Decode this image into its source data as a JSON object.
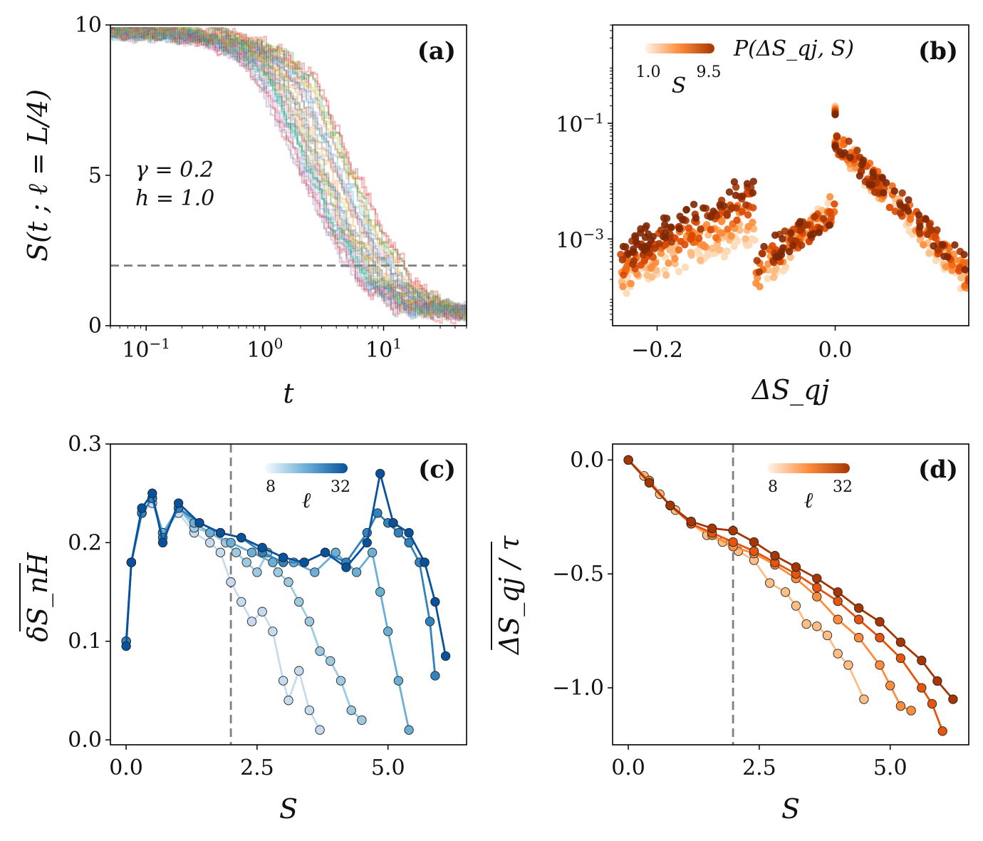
{
  "chart_data": [
    {
      "id": "a",
      "type": "line",
      "panel_label": "(a)",
      "xlabel": "t",
      "ylabel": "S(t ; ℓ = L/4)",
      "xscale": "log",
      "xlim": [
        0.05,
        50
      ],
      "ylim": [
        0,
        10
      ],
      "xticks": [
        {
          "value": 0.1,
          "base": "10",
          "exp": "−1"
        },
        {
          "value": 1,
          "base": "10",
          "exp": "0"
        },
        {
          "value": 10,
          "base": "10",
          "exp": "1"
        }
      ],
      "yticks": [
        {
          "value": 0,
          "label": "0"
        },
        {
          "value": 5,
          "label": "5"
        },
        {
          "value": 10,
          "label": "10"
        }
      ],
      "annotations": [
        "γ = 0.2",
        "h = 1.0"
      ],
      "hline": 2.0,
      "n_trajectories": 30,
      "typical_curve": {
        "x": [
          0.05,
          0.1,
          0.3,
          0.5,
          1,
          1.5,
          2,
          3,
          5,
          7,
          10,
          20,
          50
        ],
        "y": [
          9.8,
          9.75,
          9.6,
          9.4,
          8.8,
          8.0,
          6.9,
          5.3,
          3.3,
          2.4,
          1.4,
          0.6,
          0.4
        ]
      },
      "series_colors": [
        "#1f77b4",
        "#ff7f0e",
        "#2ca02c",
        "#d62728",
        "#9467bd",
        "#8c564b",
        "#e377c2",
        "#7f7f7f",
        "#bcbd22",
        "#17becf"
      ]
    },
    {
      "id": "b",
      "type": "scatter",
      "panel_label": "(b)",
      "xlabel": "ΔS_qj",
      "ylabel": "",
      "ylegend": "P(ΔS_qj, S)",
      "yscale": "log",
      "xlim": [
        -0.25,
        0.15
      ],
      "ylim_log10": [
        -4.5,
        0.7
      ],
      "xticks": [
        {
          "value": -0.2,
          "label": "−0.2"
        },
        {
          "value": 0.0,
          "label": "0.0"
        }
      ],
      "yticks": [
        {
          "value": -1,
          "base": "10",
          "exp": "−1"
        },
        {
          "value": -3,
          "base": "10",
          "exp": "−3"
        }
      ],
      "colorbar": {
        "label": "S",
        "min_label": "1.0",
        "max_label": "9.5",
        "min": 1.0,
        "max": 9.5
      },
      "peak": {
        "x": 0.0,
        "log10_y": -1.3,
        "spike_log10_y": -0.7
      },
      "series": [
        {
          "S": 1.0,
          "color": "#fdd9b5"
        },
        {
          "S": 2.5,
          "color": "#fdb97e"
        },
        {
          "S": 4.0,
          "color": "#fd8d3c"
        },
        {
          "S": 5.5,
          "color": "#f16913"
        },
        {
          "S": 7.0,
          "color": "#d94801"
        },
        {
          "S": 8.5,
          "color": "#a63603"
        },
        {
          "S": 9.5,
          "color": "#7f2704"
        }
      ]
    },
    {
      "id": "c",
      "type": "line",
      "panel_label": "(c)",
      "xlabel": "S",
      "ylabel": "δS_nH",
      "xlim": [
        -0.3,
        6.5
      ],
      "ylim": [
        -0.005,
        0.3
      ],
      "xticks": [
        {
          "value": 0,
          "label": "0.0"
        },
        {
          "value": 2.5,
          "label": "2.5"
        },
        {
          "value": 5,
          "label": "5.0"
        }
      ],
      "yticks": [
        {
          "value": 0.0,
          "label": "0.0"
        },
        {
          "value": 0.1,
          "label": "0.1"
        },
        {
          "value": 0.2,
          "label": "0.2"
        },
        {
          "value": 0.3,
          "label": "0.3"
        }
      ],
      "vline": 2.0,
      "colorbar": {
        "label": "ℓ",
        "min_label": "8",
        "max_label": "32"
      },
      "series": [
        {
          "name": "ℓ=8",
          "color": "#c6dbef",
          "x": [
            0,
            0.1,
            0.3,
            0.5,
            0.7,
            1.0,
            1.3,
            1.6,
            1.8,
            2.0,
            2.2,
            2.4,
            2.6,
            2.8,
            3.0,
            3.1,
            3.3,
            3.5,
            3.7
          ],
          "y": [
            0.1,
            0.18,
            0.23,
            0.24,
            0.21,
            0.23,
            0.21,
            0.2,
            0.19,
            0.16,
            0.14,
            0.12,
            0.13,
            0.11,
            0.06,
            0.04,
            0.07,
            0.03,
            0.01
          ]
        },
        {
          "name": "ℓ=12",
          "color": "#9ecae1",
          "x": [
            0,
            0.1,
            0.3,
            0.5,
            0.7,
            1.0,
            1.3,
            1.6,
            1.9,
            2.1,
            2.3,
            2.5,
            2.7,
            2.9,
            3.1,
            3.3,
            3.5,
            3.7,
            3.9,
            4.1,
            4.3,
            4.5
          ],
          "y": [
            0.1,
            0.18,
            0.23,
            0.245,
            0.21,
            0.235,
            0.215,
            0.21,
            0.2,
            0.19,
            0.18,
            0.17,
            0.19,
            0.17,
            0.16,
            0.14,
            0.12,
            0.09,
            0.08,
            0.06,
            0.03,
            0.02
          ]
        },
        {
          "name": "ℓ=16",
          "color": "#6baed6",
          "x": [
            0,
            0.1,
            0.3,
            0.5,
            0.7,
            1.0,
            1.3,
            1.6,
            2.0,
            2.4,
            2.8,
            3.2,
            3.6,
            4.0,
            4.4,
            4.7,
            4.85,
            5.0,
            5.2,
            5.4
          ],
          "y": [
            0.1,
            0.18,
            0.23,
            0.245,
            0.21,
            0.235,
            0.22,
            0.21,
            0.2,
            0.19,
            0.18,
            0.18,
            0.17,
            0.19,
            0.17,
            0.19,
            0.15,
            0.11,
            0.06,
            0.01
          ]
        },
        {
          "name": "ℓ=24",
          "color": "#3182bd",
          "x": [
            0,
            0.1,
            0.3,
            0.5,
            0.7,
            1.0,
            1.4,
            1.8,
            2.2,
            2.6,
            3.0,
            3.4,
            3.8,
            4.2,
            4.6,
            4.8,
            5.0,
            5.2,
            5.4,
            5.6,
            5.8,
            5.9
          ],
          "y": [
            0.1,
            0.18,
            0.23,
            0.245,
            0.205,
            0.235,
            0.22,
            0.21,
            0.205,
            0.19,
            0.18,
            0.18,
            0.19,
            0.18,
            0.21,
            0.23,
            0.22,
            0.21,
            0.2,
            0.18,
            0.12,
            0.065
          ]
        },
        {
          "name": "ℓ=32",
          "color": "#08519c",
          "x": [
            0,
            0.1,
            0.3,
            0.5,
            0.7,
            1.0,
            1.4,
            1.8,
            2.2,
            2.6,
            3.0,
            3.4,
            3.8,
            4.2,
            4.6,
            4.85,
            5.1,
            5.4,
            5.7,
            5.9,
            6.1
          ],
          "y": [
            0.095,
            0.18,
            0.235,
            0.25,
            0.2,
            0.24,
            0.22,
            0.21,
            0.205,
            0.195,
            0.185,
            0.18,
            0.19,
            0.175,
            0.2,
            0.27,
            0.22,
            0.21,
            0.18,
            0.14,
            0.085
          ]
        }
      ]
    },
    {
      "id": "d",
      "type": "line",
      "panel_label": "(d)",
      "xlabel": "S",
      "ylabel": "ΔS_qj / τ",
      "xlim": [
        -0.3,
        6.5
      ],
      "ylim": [
        -1.25,
        0.07
      ],
      "xticks": [
        {
          "value": 0,
          "label": "0.0"
        },
        {
          "value": 2.5,
          "label": "2.5"
        },
        {
          "value": 5,
          "label": "5.0"
        }
      ],
      "yticks": [
        {
          "value": 0.0,
          "label": "0.0"
        },
        {
          "value": -0.5,
          "label": "−0.5"
        },
        {
          "value": -1.0,
          "label": "−1.0"
        }
      ],
      "vline": 2.0,
      "colorbar": {
        "label": "ℓ",
        "min_label": "8",
        "max_label": "32"
      },
      "series": [
        {
          "name": "ℓ=8",
          "color": "#fdbe85",
          "x": [
            0,
            0.3,
            0.6,
            0.9,
            1.2,
            1.5,
            1.8,
            2.1,
            2.4,
            2.7,
            3.0,
            3.2,
            3.4,
            3.6,
            3.8,
            4.0,
            4.2,
            4.5
          ],
          "y": [
            0.0,
            -0.07,
            -0.15,
            -0.22,
            -0.28,
            -0.33,
            -0.36,
            -0.4,
            -0.44,
            -0.54,
            -0.58,
            -0.64,
            -0.72,
            -0.73,
            -0.77,
            -0.85,
            -0.9,
            -1.05
          ]
        },
        {
          "name": "ℓ=16",
          "color": "#fd8d3c",
          "x": [
            0,
            0.4,
            0.8,
            1.2,
            1.6,
            2.0,
            2.4,
            2.8,
            3.2,
            3.6,
            4.0,
            4.4,
            4.8,
            5.0,
            5.2,
            5.4
          ],
          "y": [
            0.0,
            -0.09,
            -0.2,
            -0.28,
            -0.33,
            -0.38,
            -0.41,
            -0.46,
            -0.52,
            -0.6,
            -0.7,
            -0.78,
            -0.9,
            -0.99,
            -1.08,
            -1.1
          ]
        },
        {
          "name": "ℓ=24",
          "color": "#e6550d",
          "x": [
            0,
            0.4,
            0.8,
            1.2,
            1.6,
            2.0,
            2.4,
            2.8,
            3.2,
            3.6,
            4.0,
            4.4,
            4.8,
            5.2,
            5.6,
            5.8,
            6.0
          ],
          "y": [
            0.0,
            -0.1,
            -0.2,
            -0.28,
            -0.32,
            -0.36,
            -0.4,
            -0.45,
            -0.5,
            -0.56,
            -0.62,
            -0.7,
            -0.78,
            -0.87,
            -1.0,
            -1.07,
            -1.19
          ]
        },
        {
          "name": "ℓ=32",
          "color": "#a63603",
          "x": [
            0,
            0.4,
            0.8,
            1.2,
            1.6,
            2.0,
            2.4,
            2.8,
            3.2,
            3.6,
            4.0,
            4.4,
            4.8,
            5.2,
            5.6,
            5.9,
            6.2
          ],
          "y": [
            0.0,
            -0.1,
            -0.2,
            -0.27,
            -0.3,
            -0.31,
            -0.36,
            -0.42,
            -0.47,
            -0.52,
            -0.58,
            -0.65,
            -0.71,
            -0.8,
            -0.88,
            -0.97,
            -1.05
          ]
        }
      ]
    }
  ]
}
